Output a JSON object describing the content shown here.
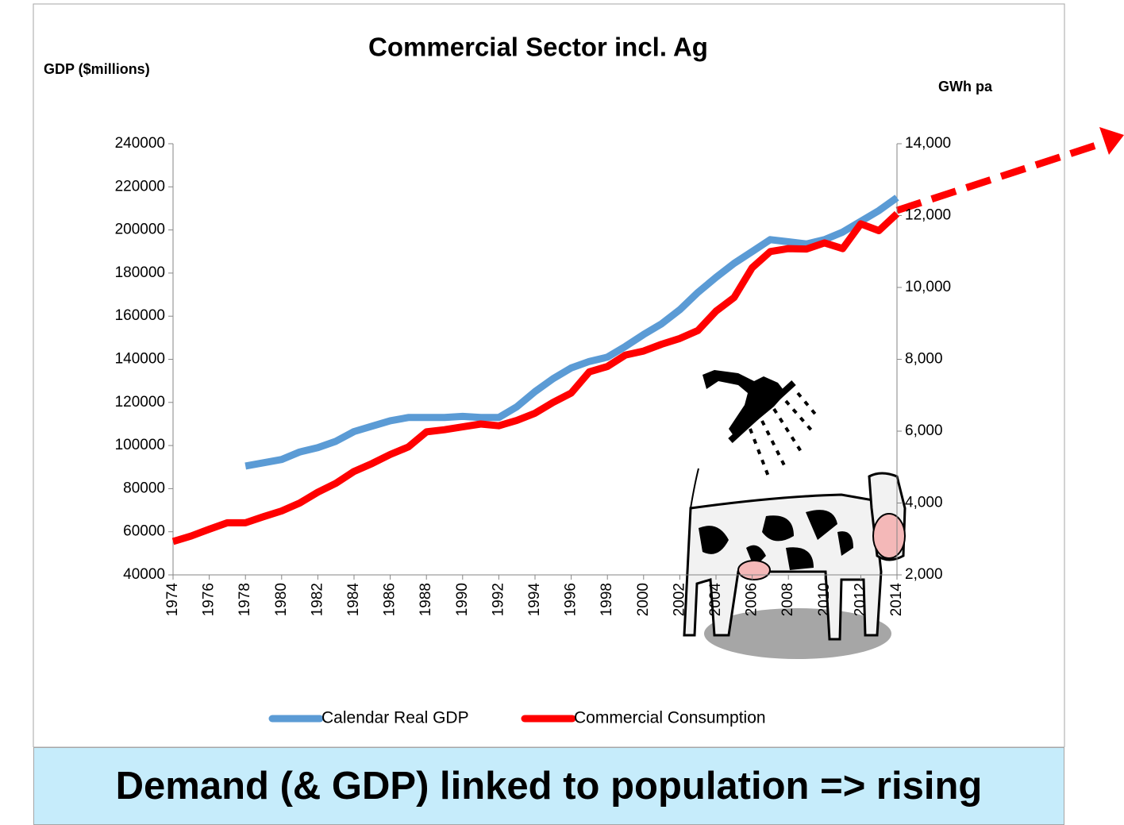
{
  "chart_data": {
    "type": "line",
    "title": "Commercial Sector incl. Ag",
    "y_label": "GDP ($millions)",
    "y2_label": "GWh pa",
    "x": [
      1974,
      1975,
      1976,
      1977,
      1978,
      1979,
      1980,
      1981,
      1982,
      1983,
      1984,
      1985,
      1986,
      1987,
      1988,
      1989,
      1990,
      1991,
      1992,
      1993,
      1994,
      1995,
      1996,
      1997,
      1998,
      1999,
      2000,
      2001,
      2002,
      2003,
      2004,
      2005,
      2006,
      2007,
      2008,
      2009,
      2010,
      2011,
      2012,
      2013,
      2014
    ],
    "xlim": [
      1974,
      2014
    ],
    "xticks": [
      1974,
      1976,
      1978,
      1980,
      1982,
      1984,
      1986,
      1988,
      1990,
      1992,
      1994,
      1996,
      1998,
      2000,
      2002,
      2004,
      2006,
      2008,
      2010,
      2012,
      2014
    ],
    "ylim": [
      40000,
      240000
    ],
    "yticks": [
      40000,
      60000,
      80000,
      100000,
      120000,
      140000,
      160000,
      180000,
      200000,
      220000,
      240000
    ],
    "y2lim": [
      2000,
      14000
    ],
    "y2ticks": [
      {
        "value": 2000,
        "label": "2,000"
      },
      {
        "value": 4000,
        "label": "4,000"
      },
      {
        "value": 6000,
        "label": "6,000"
      },
      {
        "value": 8000,
        "label": "8,000"
      },
      {
        "value": 10000,
        "label": "10,000"
      },
      {
        "value": 12000,
        "label": "12,000"
      },
      {
        "value": 14000,
        "label": "14,000"
      }
    ],
    "legend": "bottom",
    "series": [
      {
        "name": "Calendar Real GDP",
        "color": "#5b9bd5",
        "values": [
          null,
          null,
          null,
          null,
          90500,
          92000,
          93500,
          97000,
          99000,
          102000,
          106500,
          109000,
          111500,
          113000,
          113000,
          113000,
          113500,
          113000,
          113000,
          118000,
          125000,
          131000,
          136000,
          139000,
          141000,
          146000,
          151500,
          156500,
          163000,
          171000,
          178000,
          184500,
          190000,
          195500,
          194500,
          193500,
          195500,
          199000,
          204000,
          209000,
          215000
        ]
      },
      {
        "name": "Commercial Consumption",
        "color": "#ff0000",
        "axis": "y2",
        "values": [
          2930,
          3080,
          3270,
          3450,
          3450,
          3620,
          3780,
          4000,
          4300,
          4550,
          4880,
          5100,
          5350,
          5560,
          5980,
          6040,
          6120,
          6200,
          6150,
          6300,
          6500,
          6800,
          7060,
          7650,
          7800,
          8120,
          8230,
          8420,
          8580,
          8800,
          9340,
          9720,
          10550,
          11000,
          11080,
          11070,
          11240,
          11080,
          11770,
          11580,
          12050
        ]
      }
    ]
  },
  "caption": "Demand (& GDP) linked to population => rising"
}
